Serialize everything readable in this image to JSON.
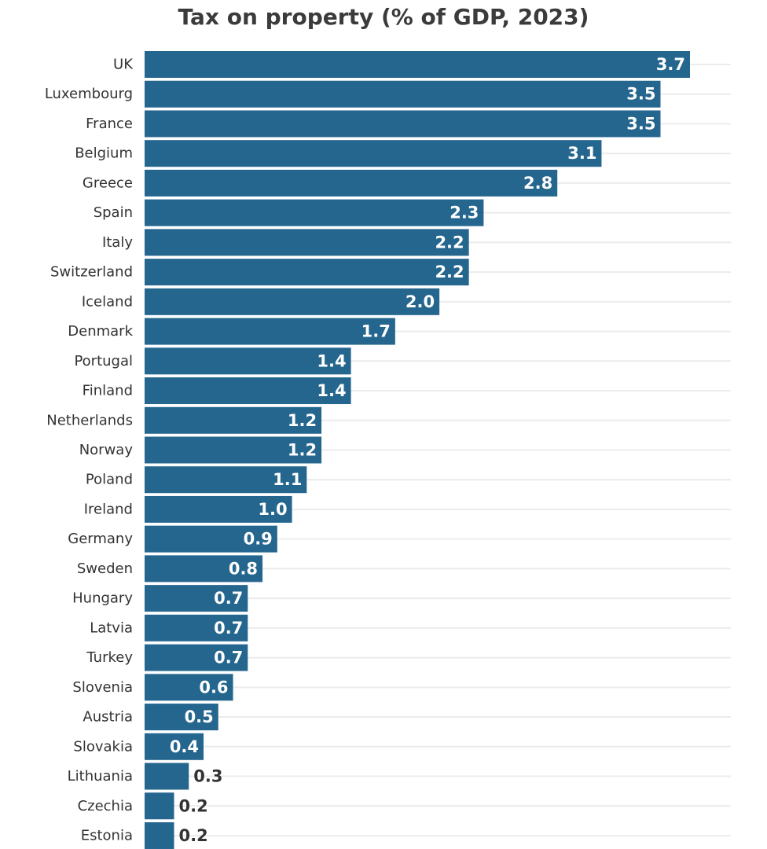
{
  "chart_data": {
    "type": "bar",
    "orientation": "horizontal",
    "title": "Tax on property (% of GDP, 2023)",
    "categories": [
      "UK",
      "Luxembourg",
      "France",
      "Belgium",
      "Greece",
      "Spain",
      "Italy",
      "Switzerland",
      "Iceland",
      "Denmark",
      "Portugal",
      "Finland",
      "Netherlands",
      "Norway",
      "Poland",
      "Ireland",
      "Germany",
      "Sweden",
      "Hungary",
      "Latvia",
      "Turkey",
      "Slovenia",
      "Austria",
      "Slovakia",
      "Lithuania",
      "Czechia",
      "Estonia"
    ],
    "values": [
      3.7,
      3.5,
      3.5,
      3.1,
      2.8,
      2.3,
      2.2,
      2.2,
      2.0,
      1.7,
      1.4,
      1.4,
      1.2,
      1.2,
      1.1,
      1.0,
      0.9,
      0.8,
      0.7,
      0.7,
      0.7,
      0.6,
      0.5,
      0.4,
      0.3,
      0.2,
      0.2
    ],
    "value_labels": [
      "3.7",
      "3.5",
      "3.5",
      "3.1",
      "2.8",
      "2.3",
      "2.2",
      "2.2",
      "2.0",
      "1.7",
      "1.4",
      "1.4",
      "1.2",
      "1.2",
      "1.1",
      "1.0",
      "0.9",
      "0.8",
      "0.7",
      "0.7",
      "0.7",
      "0.6",
      "0.5",
      "0.4",
      "0.3",
      "0.2",
      "0.2"
    ],
    "xlim": [
      0,
      3.7
    ],
    "grid": true,
    "bar_color": "#25668f",
    "grid_color": "#ececec",
    "label_inside_color": "#ffffff",
    "label_outside_color": "#333333"
  }
}
